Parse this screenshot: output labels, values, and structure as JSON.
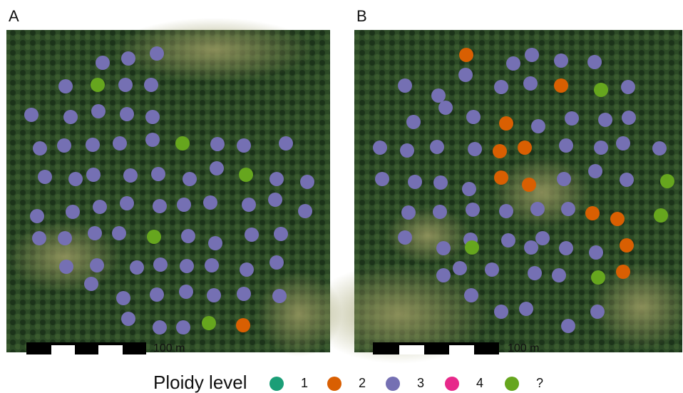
{
  "panels": [
    {
      "label": "A",
      "scale_label": "100 m"
    },
    {
      "label": "B",
      "scale_label": "100 m"
    }
  ],
  "legend": {
    "title": "Ploidy level",
    "items": [
      {
        "label": "1",
        "color": "#1b9e77"
      },
      {
        "label": "2",
        "color": "#d95f02"
      },
      {
        "label": "3",
        "color": "#7570b3"
      },
      {
        "label": "4",
        "color": "#e7298a"
      },
      {
        "label": "?",
        "color": "#66a61e"
      }
    ]
  }
}
